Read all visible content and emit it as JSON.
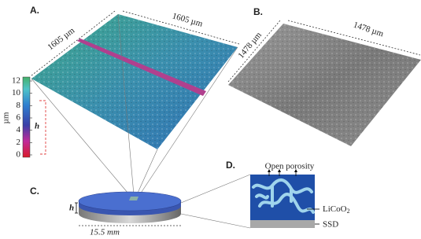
{
  "panel_a": {
    "label": "A.",
    "dimension_left": "1605 µm",
    "dimension_right": "1605 µm",
    "colorbar": {
      "ticks": [
        0,
        2,
        4,
        6,
        8,
        10,
        12
      ],
      "unit": "µm",
      "height_label": "h"
    }
  },
  "panel_b": {
    "label": "B.",
    "dimension_left": "1478 µm",
    "dimension_right": "1478 µm"
  },
  "panel_c": {
    "label": "C.",
    "height_label": "h",
    "diameter": "15.5 mm"
  },
  "panel_d": {
    "label": "D.",
    "top_label": "Open porosity",
    "layer_top": {
      "base": "LiCoO",
      "sub": "2"
    },
    "layer_bottom": "SSD"
  }
}
